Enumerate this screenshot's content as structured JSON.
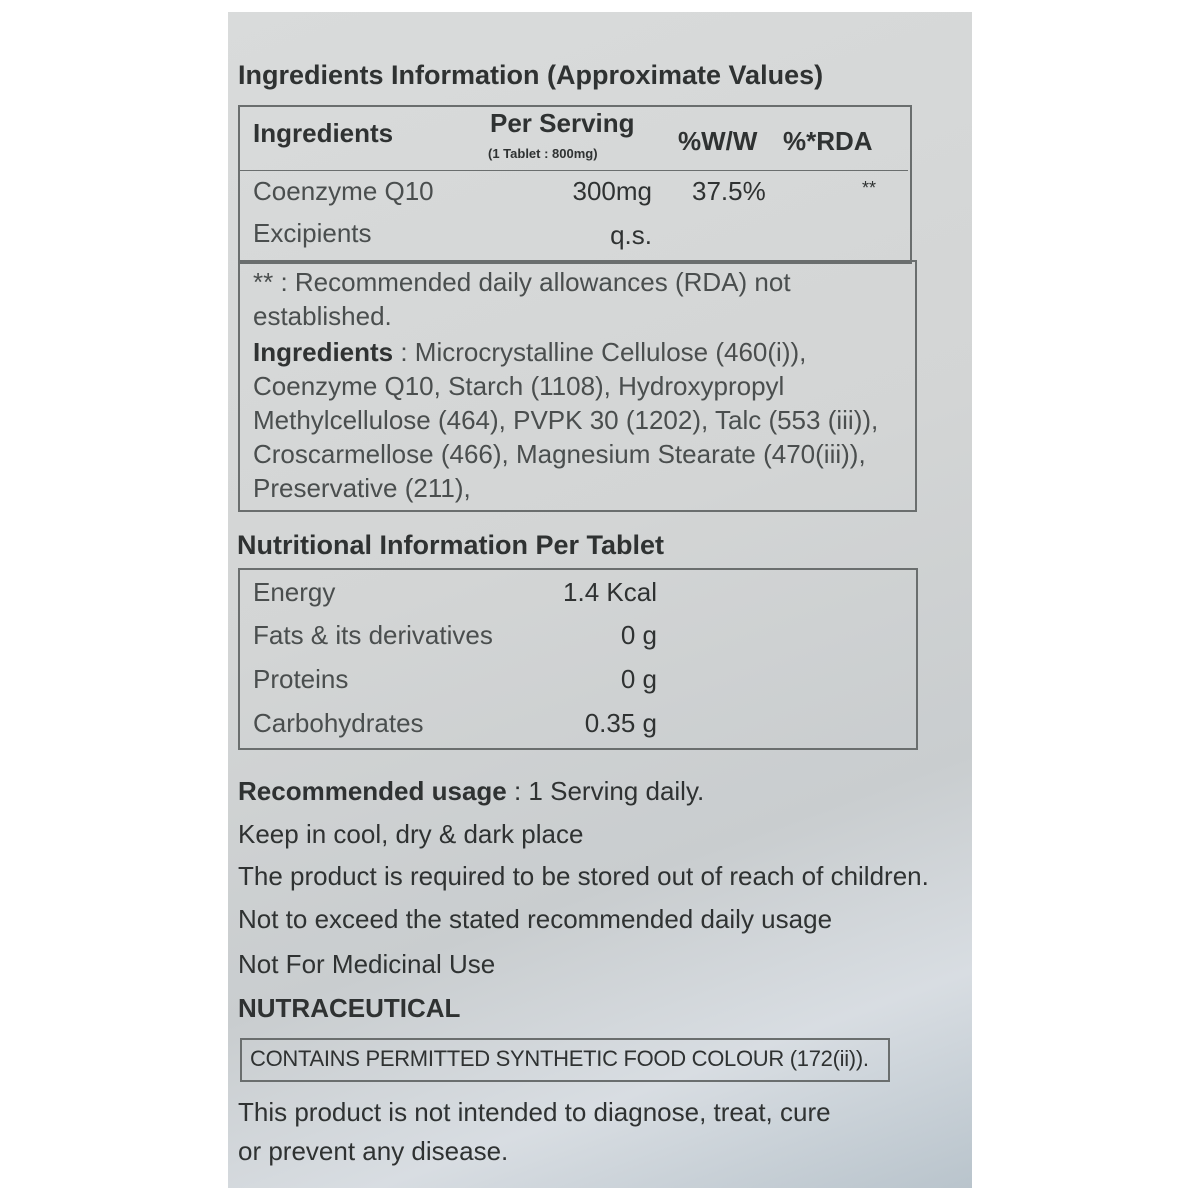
{
  "ingredients_section": {
    "title": "Ingredients Information (Approximate Values)",
    "headers": {
      "ingredients": "Ingredients",
      "per_serving": "Per Serving",
      "per_serving_note": "(1 Tablet : 800mg)",
      "ww": "%W/W",
      "rda": "%*RDA"
    },
    "rows": [
      {
        "name": "Coenzyme Q10",
        "per_serving": "300mg",
        "ww": "37.5%",
        "rda": "**"
      },
      {
        "name": "Excipients",
        "per_serving": "q.s.",
        "ww": "",
        "rda": ""
      }
    ],
    "footnote_line1": "** : Recommended daily allowances (RDA) not",
    "footnote_line2": "established.",
    "list_label": "Ingredients",
    "list_lines": [
      " : Microcrystalline Cellulose (460(i)),",
      "Coenzyme Q10, Starch (1108), Hydroxypropyl",
      "Methylcellulose (464), PVPK 30 (1202), Talc (553 (iii)),",
      "Croscarmellose (466), Magnesium Stearate (470(iii)),",
      "Preservative (211),"
    ]
  },
  "nutrition_section": {
    "title": "Nutritional Information Per Tablet",
    "rows": [
      {
        "name": "Energy",
        "value": "1.4 Kcal"
      },
      {
        "name": "Fats & its derivatives",
        "value": "0 g"
      },
      {
        "name": "Proteins",
        "value": "0 g"
      },
      {
        "name": "Carbohydrates",
        "value": "0.35 g"
      }
    ]
  },
  "usage": {
    "label": "Recommended usage",
    "value": " : 1 Serving daily."
  },
  "notes": [
    "Keep in cool, dry & dark place",
    "The product is required to be stored out of reach of children.",
    "Not to exceed the stated recommended daily usage",
    "Not For Medicinal Use"
  ],
  "category": "NUTRACEUTICAL",
  "colour_notice": "CONTAINS PERMITTED SYNTHETIC FOOD COLOUR (172(ii)).",
  "disclaimer_line1": "This product is not intended to diagnose, treat, cure",
  "disclaimer_line2": "or prevent any disease."
}
